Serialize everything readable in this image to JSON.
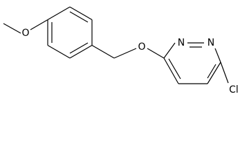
{
  "atoms": {
    "methoxy_oxygen": "O",
    "ether_oxygen": "O",
    "nitrogen_2": "N",
    "nitrogen_1": "N",
    "chlorine": "Cl"
  }
}
